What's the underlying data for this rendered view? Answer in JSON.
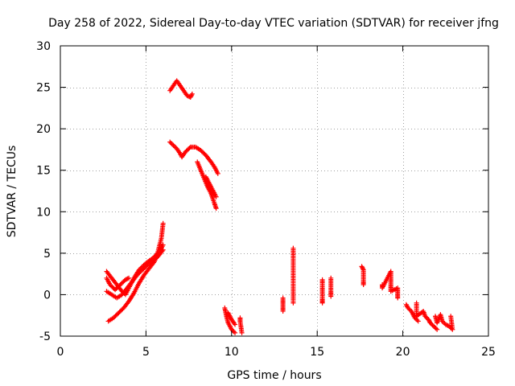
{
  "chart_data": {
    "type": "scatter",
    "title": "Day 258 of 2022, Sidereal Day-to-day VTEC variation (SDTVAR) for receiver jfng",
    "xlabel": "GPS time / hours",
    "ylabel": "SDTVAR / TECUs",
    "xlim": [
      0,
      25
    ],
    "ylim": [
      -5,
      30
    ],
    "xticks": [
      0,
      5,
      10,
      15,
      20,
      25
    ],
    "yticks": [
      -5,
      0,
      5,
      10,
      15,
      20,
      25,
      30
    ],
    "grid": true,
    "marker": "+",
    "color": "#ff0000",
    "segments": [
      [
        [
          2.7,
          2.8
        ],
        [
          3.0,
          2.0
        ],
        [
          3.3,
          1.2
        ],
        [
          3.6,
          0.4
        ],
        [
          3.8,
          0.0
        ],
        [
          4.0,
          0.8
        ],
        [
          4.3,
          2.0
        ],
        [
          4.6,
          3.0
        ],
        [
          5.0,
          3.8
        ],
        [
          5.4,
          4.4
        ],
        [
          5.8,
          5.2
        ],
        [
          6.0,
          6.0
        ]
      ],
      [
        [
          2.7,
          2.0
        ],
        [
          2.9,
          1.2
        ],
        [
          3.2,
          0.6
        ],
        [
          3.5,
          1.2
        ],
        [
          3.8,
          1.8
        ],
        [
          4.0,
          2.0
        ]
      ],
      [
        [
          2.7,
          0.4
        ],
        [
          3.0,
          0.0
        ],
        [
          3.3,
          -0.4
        ],
        [
          3.6,
          0.0
        ],
        [
          3.9,
          0.8
        ],
        [
          4.2,
          1.6
        ],
        [
          4.5,
          2.4
        ],
        [
          4.8,
          3.0
        ],
        [
          5.1,
          3.6
        ],
        [
          5.4,
          4.0
        ],
        [
          5.7,
          4.6
        ],
        [
          6.0,
          5.4
        ]
      ],
      [
        [
          2.8,
          -3.2
        ],
        [
          3.1,
          -2.8
        ],
        [
          3.4,
          -2.2
        ],
        [
          3.7,
          -1.6
        ],
        [
          4.0,
          -0.8
        ],
        [
          4.3,
          0.2
        ],
        [
          4.6,
          1.4
        ],
        [
          4.9,
          2.4
        ],
        [
          5.2,
          3.2
        ],
        [
          5.5,
          4.0
        ],
        [
          5.7,
          5.2
        ],
        [
          5.9,
          6.8
        ],
        [
          6.0,
          8.6
        ]
      ],
      [
        [
          6.4,
          24.6
        ],
        [
          6.6,
          25.2
        ],
        [
          6.8,
          25.8
        ],
        [
          7.0,
          25.2
        ],
        [
          7.2,
          24.6
        ],
        [
          7.4,
          24.0
        ],
        [
          7.6,
          23.8
        ],
        [
          7.7,
          24.2
        ]
      ],
      [
        [
          6.4,
          18.4
        ],
        [
          6.6,
          18.0
        ],
        [
          6.8,
          17.6
        ],
        [
          7.0,
          17.0
        ],
        [
          7.1,
          16.6
        ],
        [
          7.3,
          17.2
        ],
        [
          7.6,
          17.8
        ],
        [
          7.9,
          17.8
        ],
        [
          8.2,
          17.4
        ],
        [
          8.5,
          16.8
        ],
        [
          8.8,
          16.0
        ],
        [
          9.0,
          15.4
        ],
        [
          9.2,
          14.6
        ]
      ],
      [
        [
          8.0,
          16.0
        ],
        [
          8.2,
          15.0
        ],
        [
          8.4,
          14.0
        ],
        [
          8.6,
          13.0
        ],
        [
          8.8,
          12.2
        ],
        [
          9.0,
          11.0
        ],
        [
          9.1,
          10.4
        ]
      ],
      [
        [
          8.5,
          14.2
        ],
        [
          8.7,
          13.4
        ],
        [
          8.9,
          12.6
        ],
        [
          9.1,
          11.8
        ]
      ],
      [
        [
          9.6,
          -1.6
        ],
        [
          9.7,
          -2.6
        ],
        [
          9.8,
          -3.4
        ],
        [
          10.0,
          -4.2
        ],
        [
          10.2,
          -4.6
        ]
      ],
      [
        [
          9.8,
          -2.2
        ],
        [
          10.0,
          -3.0
        ],
        [
          10.2,
          -3.6
        ]
      ],
      [
        [
          10.5,
          -2.8
        ],
        [
          10.5,
          -3.2
        ],
        [
          10.6,
          -4.6
        ]
      ],
      [
        [
          13.0,
          -0.4
        ],
        [
          13.0,
          -1.2
        ],
        [
          13.0,
          -2.0
        ]
      ],
      [
        [
          13.6,
          5.6
        ],
        [
          13.6,
          2.6
        ],
        [
          13.6,
          -1.0
        ]
      ],
      [
        [
          15.3,
          1.8
        ],
        [
          15.3,
          0.6
        ],
        [
          15.3,
          -0.6
        ],
        [
          15.3,
          -1.0
        ]
      ],
      [
        [
          15.8,
          2.0
        ],
        [
          15.8,
          0.4
        ],
        [
          15.8,
          -0.2
        ]
      ],
      [
        [
          17.6,
          3.4
        ],
        [
          17.7,
          3.0
        ],
        [
          17.7,
          1.6
        ],
        [
          17.7,
          1.2
        ]
      ],
      [
        [
          18.8,
          1.2
        ],
        [
          18.8,
          0.8
        ],
        [
          19.3,
          2.8
        ],
        [
          19.3,
          1.8
        ],
        [
          19.3,
          1.0
        ],
        [
          19.3,
          0.4
        ],
        [
          19.7,
          0.8
        ],
        [
          19.7,
          0.0
        ],
        [
          19.7,
          -0.4
        ]
      ],
      [
        [
          20.2,
          -1.2
        ],
        [
          20.3,
          -1.6
        ],
        [
          20.5,
          -2.0
        ],
        [
          20.7,
          -2.8
        ],
        [
          20.9,
          -3.2
        ]
      ],
      [
        [
          20.8,
          -1.0
        ],
        [
          20.8,
          -2.6
        ],
        [
          21.2,
          -2.0
        ],
        [
          21.3,
          -2.6
        ],
        [
          21.5,
          -3.0
        ],
        [
          21.6,
          -3.4
        ],
        [
          21.8,
          -3.8
        ],
        [
          22.0,
          -4.2
        ]
      ],
      [
        [
          21.9,
          -2.6
        ],
        [
          22.0,
          -3.4
        ],
        [
          22.2,
          -2.4
        ],
        [
          22.3,
          -3.2
        ],
        [
          22.5,
          -3.6
        ],
        [
          22.7,
          -3.8
        ],
        [
          22.9,
          -4.2
        ],
        [
          22.8,
          -2.6
        ]
      ]
    ]
  }
}
